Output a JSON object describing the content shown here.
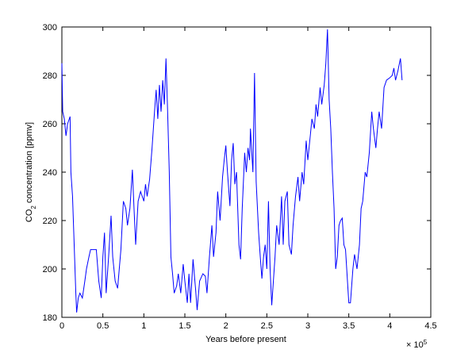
{
  "chart_data": {
    "type": "line",
    "x_label": "Years before present",
    "y_label": [
      "CO",
      "2",
      " concentration [ppmv]"
    ],
    "x_exponent": {
      "base": "× 10",
      "power": "5"
    },
    "color": "#0000ff",
    "xlim": [
      0,
      4.5
    ],
    "xticks": [
      0,
      0.5,
      1,
      1.5,
      2,
      2.5,
      3,
      3.5,
      4,
      4.5
    ],
    "ylim": [
      180,
      300
    ],
    "yticks": [
      180,
      200,
      220,
      240,
      260,
      280,
      300
    ],
    "grid": false,
    "x": [
      0,
      0.01,
      0.03,
      0.05,
      0.07,
      0.1,
      0.11,
      0.13,
      0.15,
      0.17,
      0.18,
      0.2,
      0.22,
      0.25,
      0.28,
      0.3,
      0.33,
      0.35,
      0.4,
      0.42,
      0.45,
      0.48,
      0.5,
      0.52,
      0.54,
      0.57,
      0.6,
      0.62,
      0.65,
      0.68,
      0.72,
      0.75,
      0.78,
      0.8,
      0.83,
      0.86,
      0.88,
      0.9,
      0.93,
      0.96,
      1.0,
      1.02,
      1.04,
      1.07,
      1.1,
      1.13,
      1.15,
      1.17,
      1.19,
      1.21,
      1.23,
      1.25,
      1.27,
      1.29,
      1.31,
      1.33,
      1.35,
      1.37,
      1.4,
      1.42,
      1.45,
      1.48,
      1.5,
      1.53,
      1.55,
      1.57,
      1.6,
      1.63,
      1.65,
      1.68,
      1.72,
      1.75,
      1.77,
      1.8,
      1.83,
      1.85,
      1.88,
      1.9,
      1.93,
      1.96,
      1.98,
      2.0,
      2.02,
      2.05,
      2.07,
      2.09,
      2.11,
      2.13,
      2.16,
      2.18,
      2.2,
      2.23,
      2.25,
      2.27,
      2.29,
      2.3,
      2.33,
      2.35,
      2.37,
      2.4,
      2.42,
      2.44,
      2.46,
      2.48,
      2.5,
      2.52,
      2.54,
      2.56,
      2.58,
      2.6,
      2.62,
      2.65,
      2.68,
      2.7,
      2.72,
      2.75,
      2.77,
      2.8,
      2.82,
      2.85,
      2.88,
      2.9,
      2.93,
      2.95,
      2.98,
      3.0,
      3.03,
      3.05,
      3.08,
      3.1,
      3.12,
      3.15,
      3.17,
      3.2,
      3.22,
      3.24,
      3.26,
      3.28,
      3.3,
      3.32,
      3.34,
      3.36,
      3.38,
      3.4,
      3.42,
      3.44,
      3.46,
      3.48,
      3.5,
      3.52,
      3.55,
      3.57,
      3.6,
      3.63,
      3.65,
      3.67,
      3.7,
      3.72,
      3.75,
      3.78,
      3.8,
      3.83,
      3.85,
      3.87,
      3.9,
      3.93,
      3.96,
      4.0,
      4.03,
      4.05,
      4.07,
      4.1,
      4.13,
      4.15
    ],
    "values": [
      285,
      265,
      262,
      255,
      260,
      263,
      240,
      230,
      210,
      190,
      182,
      188,
      190,
      188,
      195,
      200,
      205,
      208,
      208,
      208,
      195,
      188,
      205,
      215,
      190,
      205,
      222,
      205,
      195,
      192,
      208,
      228,
      225,
      218,
      225,
      241,
      225,
      210,
      228,
      232,
      228,
      235,
      230,
      237,
      250,
      265,
      274,
      262,
      276,
      265,
      278,
      268,
      287,
      265,
      240,
      205,
      198,
      190,
      193,
      198,
      190,
      202,
      195,
      186,
      198,
      186,
      204,
      192,
      183,
      195,
      198,
      197,
      190,
      205,
      218,
      205,
      215,
      232,
      220,
      238,
      245,
      251,
      240,
      226,
      245,
      252,
      235,
      240,
      210,
      204,
      225,
      248,
      240,
      250,
      245,
      258,
      240,
      281,
      236,
      215,
      205,
      196,
      205,
      210,
      200,
      228,
      200,
      185,
      195,
      205,
      218,
      210,
      230,
      210,
      228,
      232,
      210,
      206,
      218,
      230,
      238,
      228,
      240,
      235,
      253,
      245,
      255,
      262,
      258,
      268,
      263,
      275,
      268,
      276,
      285,
      299,
      270,
      258,
      240,
      225,
      200,
      205,
      218,
      220,
      221,
      210,
      208,
      197,
      186,
      186,
      200,
      206,
      200,
      210,
      225,
      228,
      240,
      238,
      248,
      265,
      258,
      250,
      258,
      265,
      258,
      275,
      278,
      279,
      280,
      283,
      278,
      282,
      287,
      278
    ]
  }
}
